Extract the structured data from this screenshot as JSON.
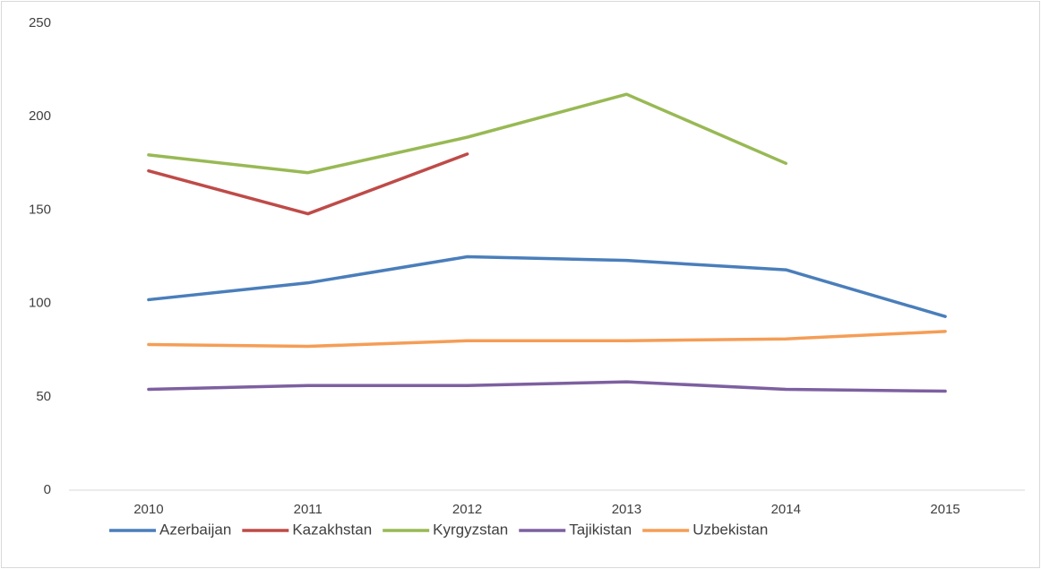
{
  "chart_data": {
    "type": "line",
    "categories": [
      "2010",
      "2011",
      "2012",
      "2013",
      "2014",
      "2015"
    ],
    "series": [
      {
        "name": "Azerbaijan",
        "color": "#4a7ebb",
        "values": [
          102,
          111,
          125,
          123,
          118,
          93
        ]
      },
      {
        "name": "Kazakhstan",
        "color": "#be4b48",
        "values": [
          171,
          148,
          180,
          null,
          null,
          null
        ]
      },
      {
        "name": "Kyrgyzstan",
        "color": "#98b954",
        "values": [
          179.5,
          170,
          189,
          212,
          175,
          null
        ]
      },
      {
        "name": "Tajikistan",
        "color": "#7d60a0",
        "values": [
          54,
          56,
          56,
          58,
          54,
          53
        ]
      },
      {
        "name": "Uzbekistan",
        "color": "#f59d56",
        "values": [
          78,
          77,
          80,
          80,
          81,
          85
        ]
      }
    ],
    "ylim": [
      0,
      250
    ],
    "yticks": [
      0,
      50,
      100,
      150,
      200,
      250
    ],
    "grid": false,
    "legend": "bottom"
  }
}
